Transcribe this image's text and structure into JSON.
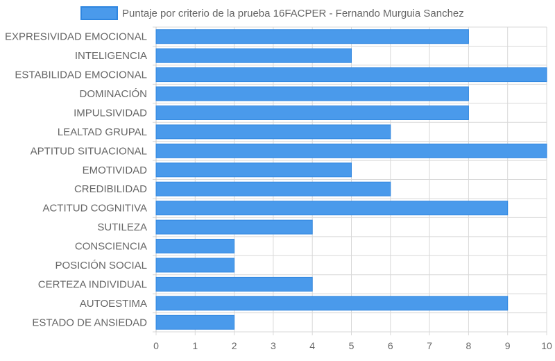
{
  "chart_data": {
    "type": "bar",
    "orientation": "horizontal",
    "categories": [
      "EXPRESIVIDAD EMOCIONAL",
      "INTELIGENCIA",
      "ESTABILIDAD EMOCIONAL",
      "DOMINACIÓN",
      "IMPULSIVIDAD",
      "LEALTAD GRUPAL",
      "APTITUD SITUACIONAL",
      "EMOTIVIDAD",
      "CREDIBILIDAD",
      "ACTITUD COGNITIVA",
      "SUTILEZA",
      "CONSCIENCIA",
      "POSICIÓN SOCIAL",
      "CERTEZA INDIVIDUAL",
      "AUTOESTIMA",
      "ESTADO DE ANSIEDAD"
    ],
    "series": [
      {
        "name": "Puntaje por criterio de la prueba 16FACPER - Fernando Murguia Sanchez",
        "values": [
          8,
          5,
          10,
          8,
          8,
          6,
          10,
          5,
          6,
          9,
          4,
          2,
          2,
          4,
          9,
          2
        ],
        "color": "#4a9aeb",
        "border_color": "#2f86e0"
      }
    ],
    "xlim": [
      0,
      10
    ],
    "x_ticks": [
      "0",
      "1",
      "2",
      "3",
      "4",
      "5",
      "6",
      "7",
      "8",
      "9",
      "10"
    ],
    "grid": true,
    "legend_position": "top",
    "grid_color": "#d8d8d8",
    "text_color": "#666666"
  }
}
